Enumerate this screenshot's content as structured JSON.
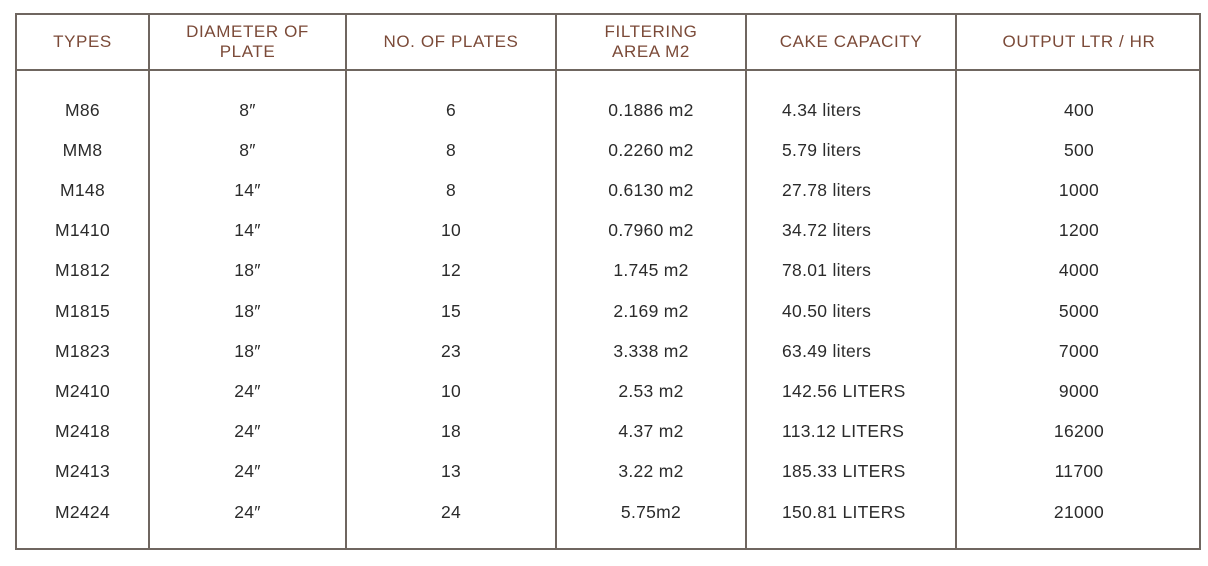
{
  "table": {
    "headers": [
      "TYPES",
      "DIAMETER OF\nPLATE",
      "NO. OF PLATES",
      "FILTERING\nAREA M2",
      "CAKE CAPACITY",
      "OUTPUT LTR / HR"
    ],
    "rows": [
      [
        "M86",
        "8″",
        "6",
        "0.1886 m2",
        "4.34 liters",
        "400"
      ],
      [
        "MM8",
        "8″",
        "8",
        "0.2260 m2",
        "5.79 liters",
        "500"
      ],
      [
        "M148",
        "14″",
        "8",
        "0.6130 m2",
        "27.78 liters",
        "1000"
      ],
      [
        "M1410",
        "14″",
        "10",
        "0.7960 m2",
        "34.72 liters",
        "1200"
      ],
      [
        "M1812",
        "18″",
        "12",
        "1.745 m2",
        "78.01 liters",
        "4000"
      ],
      [
        "M1815",
        "18″",
        "15",
        "2.169 m2",
        "40.50 liters",
        "5000"
      ],
      [
        "M1823",
        "18″",
        "23",
        "3.338 m2",
        "63.49 liters",
        "7000"
      ],
      [
        "M2410",
        "24″",
        "10",
        "2.53 m2",
        "142.56 LITERS",
        "9000"
      ],
      [
        "M2418",
        "24″",
        "18",
        "4.37 m2",
        "113.12 LITERS",
        "16200"
      ],
      [
        "M2413",
        "24″",
        "13",
        "3.22 m2",
        "185.33 LITERS",
        "11700"
      ],
      [
        "M2424",
        "24″",
        "24",
        "5.75m2",
        "150.81 LITERS",
        "21000"
      ]
    ]
  },
  "colors": {
    "header_text": "#7b4a38",
    "border": "#6f6660",
    "body_text": "#2b2b2b"
  }
}
